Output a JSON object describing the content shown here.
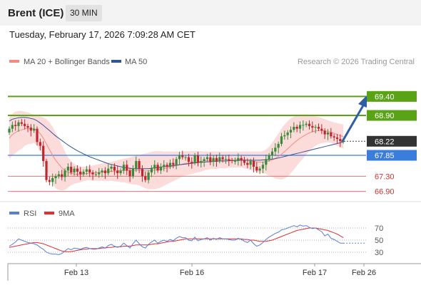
{
  "header": {
    "instrument": "Brent (ICE)",
    "timeframe": "30 MIN",
    "datetime": "Tuesday, February 17, 2026 7:09:28 AM CET"
  },
  "legend": {
    "ma20": "MA 20 + Bollinger Bands",
    "ma50": "MA 50",
    "copyright": "Research © 2026 Trading Central",
    "rsi": "RSI",
    "rsi_ma": "9MA"
  },
  "colors": {
    "ma20": "#f28b82",
    "ma50": "#2f5597",
    "bollinger": "#fbd0cf",
    "up_candle": "#3a8a3a",
    "down_candle": "#c0262d",
    "resistance_green": "#5aa317",
    "pivot_blue": "#3b7ddd",
    "support_red": "#e57373",
    "current": "#333333",
    "arrow": "#2e5fa3",
    "rsi": "#5b7fd6",
    "rsi_ma": "#e03030"
  },
  "chart_data": [
    {
      "type": "candlestick",
      "price_levels": [
        {
          "value": 69.4,
          "label": "69.40",
          "kind": "resistance"
        },
        {
          "value": 68.9,
          "label": "68.90",
          "kind": "resistance"
        },
        {
          "value": 68.22,
          "label": "68.22",
          "kind": "current"
        },
        {
          "value": 67.85,
          "label": "67.85",
          "kind": "pivot"
        },
        {
          "value": 67.3,
          "label": "67.30",
          "kind": "support"
        },
        {
          "value": 66.9,
          "label": "66.90",
          "kind": "support"
        }
      ],
      "x_ticks": [
        "Feb 13",
        "Feb 16",
        "Feb 17",
        "Feb 26"
      ],
      "close": [
        68.55,
        68.65,
        68.62,
        68.72,
        68.68,
        68.62,
        68.58,
        68.5,
        68.55,
        68.2,
        68.1,
        67.7,
        67.2,
        67.15,
        67.25,
        67.3,
        67.35,
        67.28,
        67.45,
        67.55,
        67.4,
        67.5,
        67.42,
        67.35,
        67.42,
        67.48,
        67.4,
        67.35,
        67.35,
        67.4,
        67.45,
        67.38,
        67.5,
        67.55,
        67.45,
        67.38,
        67.45,
        67.6,
        67.45,
        67.3,
        67.5,
        67.7,
        67.5,
        67.3,
        67.2,
        67.4,
        67.5,
        67.6,
        67.45,
        67.55,
        67.6,
        67.55,
        67.65,
        67.6,
        67.75,
        67.85,
        67.8,
        67.8,
        67.68,
        67.65,
        67.85,
        67.65,
        67.7,
        67.75,
        67.8,
        67.68,
        67.78,
        67.7,
        67.8,
        67.75,
        67.75,
        67.72,
        67.7,
        67.7,
        67.78,
        67.72,
        67.65,
        67.6,
        67.7,
        67.55,
        67.45,
        67.5,
        67.6,
        67.75,
        67.85,
        67.95,
        68.05,
        68.15,
        68.35,
        68.38,
        68.45,
        68.52,
        68.6,
        68.55,
        68.65,
        68.65,
        68.68,
        68.62,
        68.58,
        68.6,
        68.55,
        68.5,
        68.4,
        68.45,
        68.35,
        68.32,
        68.28,
        68.22,
        68.22
      ],
      "open": [
        68.45,
        68.55,
        68.65,
        68.62,
        68.72,
        68.68,
        68.62,
        68.58,
        68.5,
        68.55,
        68.2,
        68.1,
        67.7,
        67.2,
        67.15,
        67.25,
        67.3,
        67.35,
        67.28,
        67.45,
        67.55,
        67.4,
        67.5,
        67.42,
        67.35,
        67.42,
        67.48,
        67.4,
        67.35,
        67.35,
        67.4,
        67.45,
        67.38,
        67.5,
        67.55,
        67.45,
        67.38,
        67.45,
        67.6,
        67.45,
        67.3,
        67.5,
        67.7,
        67.5,
        67.3,
        67.2,
        67.4,
        67.5,
        67.6,
        67.45,
        67.55,
        67.6,
        67.55,
        67.65,
        67.6,
        67.75,
        67.85,
        67.8,
        67.8,
        67.68,
        67.65,
        67.85,
        67.65,
        67.7,
        67.75,
        67.8,
        67.68,
        67.78,
        67.7,
        67.8,
        67.75,
        67.75,
        67.72,
        67.7,
        67.7,
        67.78,
        67.72,
        67.65,
        67.6,
        67.7,
        67.55,
        67.45,
        67.5,
        67.6,
        67.75,
        67.85,
        67.95,
        68.05,
        68.15,
        68.35,
        68.38,
        68.45,
        68.52,
        68.6,
        68.55,
        68.65,
        68.65,
        68.68,
        68.62,
        68.58,
        68.6,
        68.55,
        68.5,
        68.4,
        68.45,
        68.35,
        68.32,
        68.28,
        68.22
      ],
      "ma20": [
        68.3,
        68.4,
        68.45,
        68.5,
        68.52,
        68.55,
        68.56,
        68.55,
        68.55,
        68.5,
        68.42,
        68.3,
        68.15,
        68.0,
        67.85,
        67.72,
        67.62,
        67.52,
        67.45,
        67.4,
        67.38,
        67.36,
        67.35,
        67.35,
        67.36,
        67.37,
        67.38,
        67.38,
        67.39,
        67.4,
        67.41,
        67.42,
        67.42,
        67.43,
        67.43,
        67.44,
        67.44,
        67.45,
        67.45,
        67.45,
        67.45,
        67.46,
        67.46,
        67.45,
        67.44,
        67.44,
        67.45,
        67.46,
        67.47,
        67.48,
        67.5,
        67.52,
        67.54,
        67.56,
        67.58,
        67.6,
        67.62,
        67.64,
        67.65,
        67.66,
        67.67,
        67.68,
        67.69,
        67.7,
        67.71,
        67.72,
        67.72,
        67.72,
        67.73,
        67.73,
        67.73,
        67.74,
        67.74,
        67.74,
        67.74,
        67.74,
        67.73,
        67.72,
        67.71,
        67.7,
        67.68,
        67.67,
        67.67,
        67.68,
        67.7,
        67.73,
        67.77,
        67.82,
        67.88,
        67.95,
        68.02,
        68.1,
        68.17,
        68.24,
        68.3,
        68.35,
        68.4,
        68.44,
        68.47,
        68.49,
        68.5,
        68.5,
        68.49,
        68.48,
        68.46,
        68.43,
        68.4,
        68.37,
        68.34
      ],
      "ma50": [
        68.75,
        68.8,
        68.82,
        68.84,
        68.85,
        68.85,
        68.84,
        68.82,
        68.8,
        68.76,
        68.7,
        68.64,
        68.57,
        68.5,
        68.43,
        68.36,
        68.3,
        68.24,
        68.18,
        68.12,
        68.07,
        68.02,
        67.97,
        67.93,
        67.89,
        67.85,
        67.81,
        67.78,
        67.75,
        67.72,
        67.69,
        67.66,
        67.63,
        67.61,
        67.59,
        67.57,
        67.55,
        67.53,
        67.52,
        67.51,
        67.5,
        67.5,
        67.5,
        67.5,
        67.5,
        67.5,
        67.51,
        67.52,
        67.53,
        67.54,
        67.55,
        67.56,
        67.57,
        67.58,
        67.59,
        67.6,
        67.61,
        67.62,
        67.63,
        67.64,
        67.65,
        67.66,
        67.67,
        67.67,
        67.68,
        67.68,
        67.69,
        67.69,
        67.7,
        67.7,
        67.7,
        67.71,
        67.71,
        67.71,
        67.72,
        67.72,
        67.72,
        67.72,
        67.72,
        67.72,
        67.72,
        67.72,
        67.73,
        67.73,
        67.74,
        67.75,
        67.76,
        67.78,
        67.8,
        67.82,
        67.84,
        67.86,
        67.88,
        67.9,
        67.92,
        67.94,
        67.96,
        67.98,
        68.0,
        68.02,
        68.04,
        68.06,
        68.08,
        68.1,
        68.12,
        68.14,
        68.16,
        68.18,
        68.2
      ],
      "bb_upper": [
        68.85,
        68.95,
        69.0,
        69.02,
        69.02,
        69.0,
        68.98,
        68.95,
        68.92,
        68.9,
        68.88,
        68.85,
        68.8,
        68.72,
        68.6,
        68.45,
        68.3,
        68.12,
        67.95,
        67.8,
        67.7,
        67.62,
        67.58,
        67.56,
        67.55,
        67.55,
        67.56,
        67.58,
        67.6,
        67.62,
        67.64,
        67.66,
        67.67,
        67.68,
        67.7,
        67.72,
        67.74,
        67.76,
        67.78,
        67.8,
        67.82,
        67.84,
        67.86,
        67.88,
        67.9,
        67.92,
        67.94,
        67.96,
        67.96,
        67.96,
        67.95,
        67.95,
        67.95,
        67.95,
        67.95,
        67.95,
        67.95,
        67.96,
        67.96,
        67.96,
        67.96,
        67.96,
        67.96,
        67.95,
        67.95,
        67.95,
        67.95,
        67.95,
        67.95,
        67.95,
        67.95,
        67.95,
        67.95,
        67.95,
        67.95,
        67.95,
        67.95,
        67.95,
        67.95,
        67.95,
        67.95,
        67.95,
        67.96,
        68.0,
        68.08,
        68.18,
        68.3,
        68.42,
        68.55,
        68.66,
        68.75,
        68.82,
        68.87,
        68.9,
        68.92,
        68.93,
        68.93,
        68.92,
        68.9,
        68.88,
        68.86,
        68.83,
        68.8,
        68.77,
        68.74,
        68.72,
        68.7,
        68.68,
        68.66
      ],
      "bb_lower": [
        67.75,
        67.85,
        67.9,
        67.98,
        68.02,
        68.1,
        68.14,
        68.15,
        68.18,
        68.1,
        67.96,
        67.75,
        67.5,
        67.28,
        67.1,
        66.98,
        66.94,
        66.92,
        66.94,
        67.0,
        67.06,
        67.1,
        67.12,
        67.14,
        67.17,
        67.19,
        67.2,
        67.18,
        67.18,
        67.18,
        67.18,
        67.18,
        67.17,
        67.18,
        67.16,
        67.16,
        67.14,
        67.14,
        67.12,
        67.1,
        67.08,
        67.08,
        67.06,
        67.02,
        66.98,
        66.96,
        66.96,
        66.96,
        66.98,
        67.0,
        67.05,
        67.09,
        67.13,
        67.17,
        67.21,
        67.25,
        67.29,
        67.32,
        67.34,
        67.36,
        67.38,
        67.4,
        67.42,
        67.45,
        67.47,
        67.49,
        67.49,
        67.49,
        67.51,
        67.51,
        67.51,
        67.53,
        67.53,
        67.53,
        67.53,
        67.53,
        67.51,
        67.49,
        67.47,
        67.45,
        67.41,
        67.39,
        67.38,
        67.36,
        67.32,
        67.28,
        67.24,
        67.22,
        67.21,
        67.24,
        67.29,
        67.38,
        67.47,
        67.58,
        67.68,
        67.77,
        67.87,
        67.96,
        68.04,
        68.1,
        68.14,
        68.17,
        68.18,
        68.19,
        68.18,
        68.14,
        68.1,
        68.06,
        68.02
      ]
    },
    {
      "type": "line",
      "name": "RSI",
      "levels": [
        30,
        50,
        70
      ],
      "ylim": [
        20,
        80
      ],
      "rsi": [
        40,
        43,
        47,
        52,
        50,
        48,
        46,
        45,
        44,
        42,
        38,
        35,
        30,
        28,
        27,
        27,
        26,
        28,
        32,
        36,
        34,
        37,
        36,
        35,
        37,
        38,
        36,
        35,
        35,
        37,
        39,
        37,
        41,
        43,
        40,
        38,
        40,
        45,
        41,
        37,
        44,
        50,
        44,
        39,
        37,
        43,
        47,
        50,
        45,
        48,
        50,
        48,
        51,
        49,
        53,
        56,
        54,
        54,
        50,
        49,
        55,
        49,
        51,
        52,
        54,
        50,
        53,
        51,
        54,
        52,
        52,
        51,
        50,
        50,
        53,
        51,
        48,
        46,
        50,
        44,
        40,
        42,
        46,
        51,
        55,
        58,
        61,
        63,
        67,
        68,
        70,
        72,
        74,
        72,
        75,
        73,
        74,
        71,
        69,
        70,
        67,
        64,
        57,
        60,
        53,
        51,
        48,
        45,
        45
      ],
      "rsi_ma": [
        38,
        39,
        40,
        41,
        42,
        43,
        44,
        45,
        46,
        46,
        45,
        44,
        42,
        40,
        38,
        36,
        34,
        32,
        31,
        31,
        31,
        32,
        33,
        34,
        35,
        35,
        36,
        36,
        36,
        36,
        37,
        37,
        38,
        38,
        39,
        39,
        39,
        40,
        40,
        40,
        41,
        42,
        42,
        42,
        42,
        42,
        43,
        44,
        44,
        45,
        46,
        47,
        48,
        48,
        49,
        50,
        51,
        52,
        52,
        52,
        52,
        52,
        52,
        52,
        52,
        52,
        52,
        52,
        52,
        52,
        52,
        52,
        52,
        52,
        52,
        52,
        51,
        51,
        50,
        50,
        49,
        48,
        48,
        48,
        49,
        50,
        52,
        54,
        56,
        58,
        60,
        62,
        64,
        66,
        67,
        68,
        69,
        70,
        70,
        70,
        69,
        68,
        67,
        66,
        64,
        62,
        60,
        57,
        54
      ]
    }
  ]
}
